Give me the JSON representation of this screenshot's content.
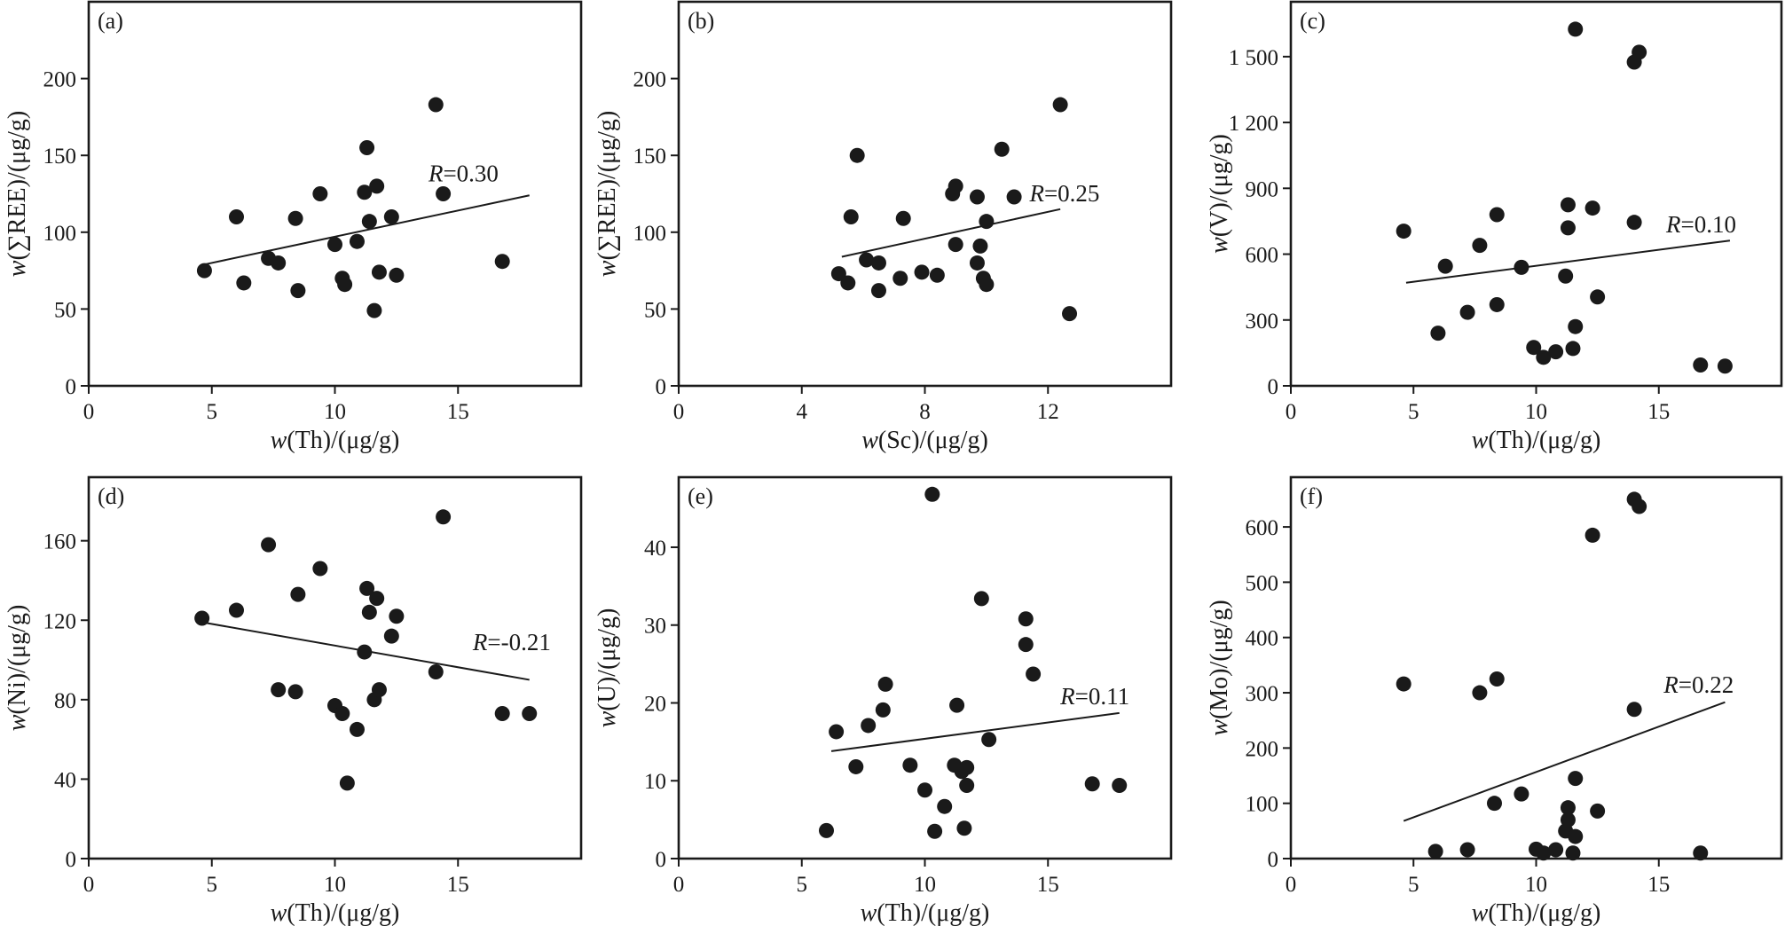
{
  "chart_data": [
    {
      "type": "scatter",
      "panel_label": "(a)",
      "xlabel": "w(Th)/(μg/g)",
      "ylabel": "w(∑REE)/(μg/g)",
      "xlim": [
        0,
        20
      ],
      "ylim": [
        0,
        250
      ],
      "xticks": [
        0,
        5,
        10,
        15
      ],
      "yticks": [
        0,
        50,
        100,
        150,
        200
      ],
      "xtick_labels": [
        "0",
        "5",
        "10",
        "15"
      ],
      "ytick_labels": [
        "0",
        "50",
        "100",
        "150",
        "200"
      ],
      "points": [
        [
          4.7,
          75
        ],
        [
          6,
          110
        ],
        [
          6.3,
          67
        ],
        [
          7.3,
          83
        ],
        [
          7.7,
          80
        ],
        [
          8.4,
          109
        ],
        [
          8.5,
          62
        ],
        [
          9.4,
          125
        ],
        [
          10,
          92
        ],
        [
          10.3,
          70
        ],
        [
          10.4,
          66
        ],
        [
          10.9,
          94
        ],
        [
          11.2,
          126
        ],
        [
          11.3,
          155
        ],
        [
          11.4,
          107
        ],
        [
          11.6,
          49
        ],
        [
          11.7,
          130
        ],
        [
          11.8,
          74
        ],
        [
          12.3,
          110
        ],
        [
          12.5,
          72
        ],
        [
          14.1,
          183
        ],
        [
          14.4,
          125
        ],
        [
          16.8,
          81
        ]
      ],
      "fit": [
        [
          4.7,
          79
        ],
        [
          17.9,
          124
        ]
      ],
      "r_label": "R=0.30",
      "r_pos": [
        13.8,
        133
      ]
    },
    {
      "type": "scatter",
      "panel_label": "(b)",
      "xlabel": "w(Sc)/(μg/g)",
      "ylabel": "w(∑REE)/(μg/g)",
      "xlim": [
        0,
        16
      ],
      "ylim": [
        0,
        250
      ],
      "xticks": [
        0,
        4,
        8,
        12
      ],
      "yticks": [
        0,
        50,
        100,
        150,
        200
      ],
      "xtick_labels": [
        "0",
        "4",
        "8",
        "12"
      ],
      "ytick_labels": [
        "0",
        "50",
        "100",
        "150",
        "200"
      ],
      "points": [
        [
          5.2,
          73
        ],
        [
          5.5,
          67
        ],
        [
          5.6,
          110
        ],
        [
          5.8,
          150
        ],
        [
          6.1,
          82
        ],
        [
          6.5,
          80
        ],
        [
          6.5,
          62
        ],
        [
          7.2,
          70
        ],
        [
          7.3,
          109
        ],
        [
          7.9,
          74
        ],
        [
          8.4,
          72
        ],
        [
          8.9,
          125
        ],
        [
          9,
          130
        ],
        [
          9,
          92
        ],
        [
          9.7,
          123
        ],
        [
          9.7,
          80
        ],
        [
          9.8,
          91
        ],
        [
          9.9,
          70
        ],
        [
          10,
          107
        ],
        [
          10,
          66
        ],
        [
          10.5,
          154
        ],
        [
          10.9,
          123
        ],
        [
          12.4,
          183
        ],
        [
          12.7,
          47
        ]
      ],
      "fit": [
        [
          5.3,
          84
        ],
        [
          12.4,
          115
        ]
      ],
      "r_label": "R=0.25",
      "r_pos": [
        11.4,
        120
      ]
    },
    {
      "type": "scatter",
      "panel_label": "(c)",
      "xlabel": "w(Th)/(μg/g)",
      "ylabel": "w(V)/(μg/g)",
      "xlim": [
        0,
        20
      ],
      "ylim": [
        0,
        1750
      ],
      "xticks": [
        0,
        5,
        10,
        15
      ],
      "yticks": [
        0,
        300,
        600,
        900,
        1200,
        1500
      ],
      "xtick_labels": [
        "0",
        "5",
        "10",
        "15"
      ],
      "ytick_labels": [
        "0",
        "300",
        "600",
        "900",
        "1 200",
        "1 500"
      ],
      "points": [
        [
          4.6,
          705
        ],
        [
          6,
          240
        ],
        [
          6.3,
          545
        ],
        [
          7.2,
          335
        ],
        [
          7.7,
          640
        ],
        [
          8.4,
          370
        ],
        [
          8.4,
          780
        ],
        [
          9.4,
          540
        ],
        [
          9.9,
          175
        ],
        [
          10.3,
          130
        ],
        [
          10.8,
          155
        ],
        [
          11.2,
          500
        ],
        [
          11.3,
          720
        ],
        [
          11.3,
          825
        ],
        [
          11.5,
          170
        ],
        [
          11.6,
          270
        ],
        [
          11.6,
          1625
        ],
        [
          12.3,
          810
        ],
        [
          12.5,
          405
        ],
        [
          14,
          745
        ],
        [
          14,
          1475
        ],
        [
          14.2,
          1520
        ],
        [
          16.7,
          95
        ],
        [
          17.7,
          90
        ]
      ],
      "fit": [
        [
          4.7,
          470
        ],
        [
          17.9,
          662
        ]
      ],
      "r_label": "R=0.10",
      "r_pos": [
        15.3,
        700
      ]
    },
    {
      "type": "scatter",
      "panel_label": "(d)",
      "xlabel": "w(Th)/(μg/g)",
      "ylabel": "w(Ni)/(μg/g)",
      "xlim": [
        0,
        20
      ],
      "ylim": [
        0,
        192
      ],
      "xticks": [
        0,
        5,
        10,
        15
      ],
      "yticks": [
        0,
        40,
        80,
        120,
        160
      ],
      "xtick_labels": [
        "0",
        "5",
        "10",
        "15"
      ],
      "ytick_labels": [
        "0",
        "40",
        "80",
        "120",
        "160"
      ],
      "points": [
        [
          4.6,
          121
        ],
        [
          6,
          125
        ],
        [
          7.3,
          158
        ],
        [
          7.7,
          85
        ],
        [
          8.4,
          84
        ],
        [
          8.5,
          133
        ],
        [
          9.4,
          146
        ],
        [
          10,
          77
        ],
        [
          10.3,
          73
        ],
        [
          10.9,
          65
        ],
        [
          11.2,
          104
        ],
        [
          11.3,
          136
        ],
        [
          11.4,
          124
        ],
        [
          11.6,
          80
        ],
        [
          11.7,
          131
        ],
        [
          11.8,
          85
        ],
        [
          12.3,
          112
        ],
        [
          12.5,
          122
        ],
        [
          10.5,
          38
        ],
        [
          14.1,
          94
        ],
        [
          14.4,
          172
        ],
        [
          16.8,
          73
        ],
        [
          17.9,
          73
        ]
      ],
      "fit": [
        [
          4.6,
          119
        ],
        [
          17.9,
          90
        ]
      ],
      "r_label": "R=-0.21",
      "r_pos": [
        15.6,
        105
      ]
    },
    {
      "type": "scatter",
      "panel_label": "(e)",
      "xlabel": "w(Th)/(μg/g)",
      "ylabel": "w(U)/(μg/g)",
      "xlim": [
        0,
        20
      ],
      "ylim": [
        0,
        49
      ],
      "xticks": [
        0,
        5,
        10,
        15
      ],
      "yticks": [
        0,
        10,
        20,
        30,
        40
      ],
      "xtick_labels": [
        "0",
        "5",
        "10",
        "15"
      ],
      "ytick_labels": [
        "0",
        "10",
        "20",
        "30",
        "40"
      ],
      "points": [
        [
          6,
          3.6
        ],
        [
          6.4,
          16.3
        ],
        [
          7.2,
          11.8
        ],
        [
          7.7,
          17.1
        ],
        [
          8.3,
          19.1
        ],
        [
          8.4,
          22.4
        ],
        [
          9.4,
          12
        ],
        [
          10,
          8.8
        ],
        [
          10.3,
          46.8
        ],
        [
          10.4,
          3.5
        ],
        [
          10.8,
          6.7
        ],
        [
          11.2,
          12
        ],
        [
          11.3,
          19.7
        ],
        [
          11.5,
          11.2
        ],
        [
          11.6,
          3.9
        ],
        [
          11.7,
          11.7
        ],
        [
          11.7,
          9.4
        ],
        [
          12.3,
          33.4
        ],
        [
          12.6,
          15.3
        ],
        [
          14.1,
          30.8
        ],
        [
          14.1,
          27.5
        ],
        [
          14.4,
          23.7
        ],
        [
          16.8,
          9.6
        ],
        [
          17.9,
          9.4
        ]
      ],
      "fit": [
        [
          6.2,
          13.8
        ],
        [
          17.9,
          18.7
        ]
      ],
      "r_label": "R=0.11",
      "r_pos": [
        15.5,
        19.8
      ]
    },
    {
      "type": "scatter",
      "panel_label": "(f)",
      "xlabel": "w(Th)/(μg/g)",
      "ylabel": "w(Mo)/(μg/g)",
      "xlim": [
        0,
        20
      ],
      "ylim": [
        0,
        690
      ],
      "xticks": [
        0,
        5,
        10,
        15
      ],
      "yticks": [
        0,
        100,
        200,
        300,
        400,
        500,
        600
      ],
      "xtick_labels": [
        "0",
        "5",
        "10",
        "15"
      ],
      "ytick_labels": [
        "0",
        "100",
        "200",
        "300",
        "400",
        "500",
        "600"
      ],
      "points": [
        [
          4.6,
          316
        ],
        [
          5.9,
          13
        ],
        [
          7.2,
          16
        ],
        [
          7.7,
          300
        ],
        [
          8.4,
          325
        ],
        [
          8.3,
          100
        ],
        [
          9.4,
          117
        ],
        [
          10,
          17
        ],
        [
          10.3,
          10
        ],
        [
          10.8,
          16
        ],
        [
          11.2,
          50
        ],
        [
          11.3,
          70
        ],
        [
          11.3,
          92
        ],
        [
          11.5,
          10
        ],
        [
          11.6,
          40
        ],
        [
          11.6,
          145
        ],
        [
          12.3,
          585
        ],
        [
          12.5,
          86
        ],
        [
          14,
          270
        ],
        [
          14,
          650
        ],
        [
          14.2,
          637
        ],
        [
          16.7,
          10
        ]
      ],
      "fit": [
        [
          4.6,
          68
        ],
        [
          17.7,
          283
        ]
      ],
      "r_label": "R=0.22",
      "r_pos": [
        15.2,
        300
      ]
    }
  ]
}
